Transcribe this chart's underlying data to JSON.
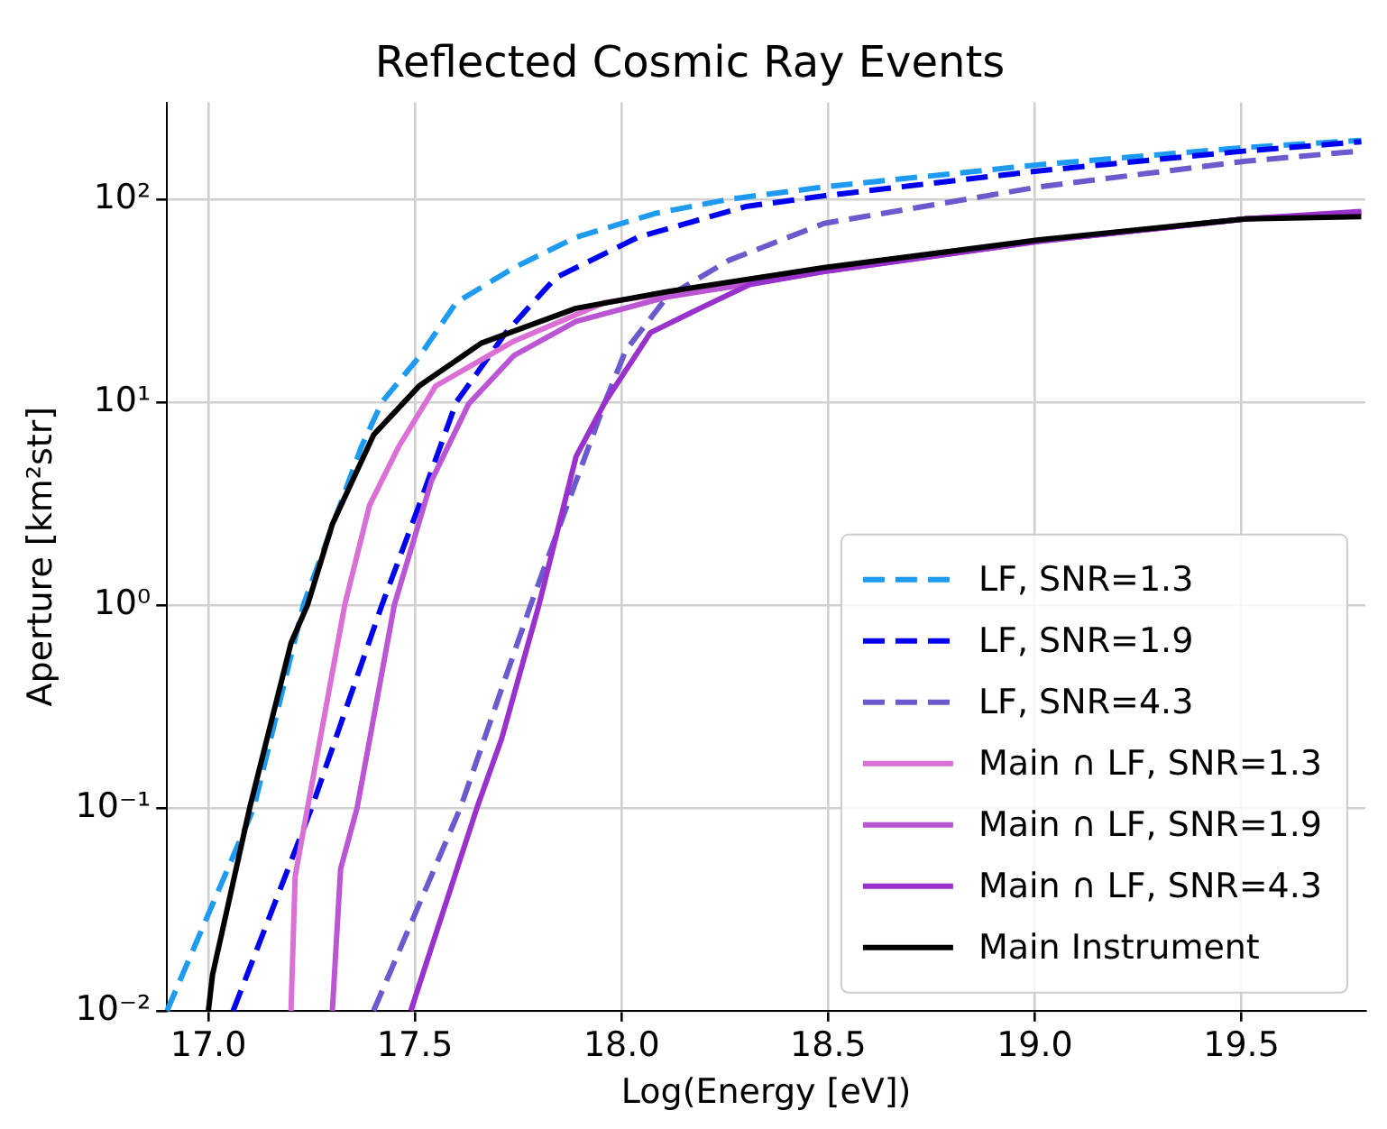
{
  "chart_data": {
    "type": "line",
    "title": "Reflected Cosmic Ray Events",
    "xlabel": "Log(Energy [eV])",
    "ylabel": "Aperture [km²str]",
    "xlim": [
      16.9,
      19.8
    ],
    "xticks": [
      {
        "value": 17,
        "label": "17.0"
      },
      {
        "value": 17.5,
        "label": "17.5"
      },
      {
        "value": 18,
        "label": "18.0"
      },
      {
        "value": 18.5,
        "label": "18.5"
      },
      {
        "value": 19,
        "label": "19.0"
      },
      {
        "value": 19.5,
        "label": "19.5"
      }
    ],
    "ylim": [
      0.01,
      300
    ],
    "yticks": [
      {
        "value": 0.01,
        "label": "10⁻²"
      },
      {
        "value": 0.1,
        "label": "10⁻¹"
      },
      {
        "value": 1,
        "label": "10⁰"
      },
      {
        "value": 10,
        "label": "10¹"
      },
      {
        "value": 100,
        "label": "10²"
      }
    ],
    "log": "y",
    "grid": true,
    "legend": "bottom right",
    "series": [
      {
        "name": "LF, SNR=1.3",
        "color": "#1e9bf0",
        "line_style": "dashed",
        "x": [
          16.9,
          17.11,
          17.23,
          17.37,
          17.42,
          17.51,
          17.6,
          17.74,
          17.89,
          18.08,
          18.26,
          18.49,
          19.01,
          19.51,
          19.79
        ],
        "values": [
          0.01,
          0.1,
          1,
          6,
          10,
          16.7,
          31,
          46,
          65,
          85,
          100,
          115,
          148,
          180,
          195
        ]
      },
      {
        "name": "LF, SNR=1.9",
        "color": "#0000f0",
        "line_style": "dashed",
        "x": [
          17.06,
          17.25,
          17.42,
          17.51,
          17.6,
          17.72,
          17.84,
          18.04,
          18.3,
          18.49,
          19.01,
          19.51,
          19.79
        ],
        "values": [
          0.01,
          0.1,
          1,
          3.1,
          10,
          22,
          41,
          65,
          92,
          104,
          138,
          173,
          192
        ]
      },
      {
        "name": "LF, SNR=4.3",
        "color": "#6a5acd",
        "line_style": "dashed",
        "x": [
          17.4,
          17.61,
          17.78,
          17.96,
          18.01,
          18.11,
          18.26,
          18.49,
          19.01,
          19.51,
          19.79
        ],
        "values": [
          0.01,
          0.1,
          1,
          10,
          18,
          33,
          50,
          76,
          115,
          154,
          173
        ]
      },
      {
        "name": "Main ∩ LF, SNR=1.3",
        "color": "#da70d6",
        "line_style": "solid",
        "x": [
          17.2,
          17.21,
          17.24,
          17.33,
          17.39,
          17.46,
          17.55,
          17.74,
          17.96,
          18.3,
          18.49,
          19.01,
          19.51,
          19.79
        ],
        "values": [
          0.01,
          0.046,
          0.1,
          1,
          3.1,
          6,
          12,
          20,
          31,
          39,
          44,
          62,
          80,
          85
        ]
      },
      {
        "name": "Main ∩ LF, SNR=1.9",
        "color": "#ba55d3",
        "line_style": "solid",
        "x": [
          17.3,
          17.32,
          17.36,
          17.45,
          17.54,
          17.63,
          17.74,
          17.89,
          18.11,
          18.3,
          18.49,
          19.01,
          19.51,
          19.79
        ],
        "values": [
          0.01,
          0.05,
          0.1,
          1,
          4.1,
          9.8,
          17,
          25,
          33,
          38,
          44,
          62,
          80,
          86
        ]
      },
      {
        "name": "Main ∩ LF, SNR=4.3",
        "color": "#9932cc",
        "line_style": "solid",
        "x": [
          17.49,
          17.65,
          17.71,
          17.8,
          17.89,
          17.96,
          18.07,
          18.19,
          18.31,
          18.49,
          19.01,
          19.51,
          19.79
        ],
        "values": [
          0.01,
          0.1,
          0.22,
          1,
          5.4,
          10,
          22,
          29,
          38,
          44,
          62,
          80,
          87
        ]
      },
      {
        "name": "Main Instrument",
        "color": "#000000",
        "line_style": "solid",
        "x": [
          17.0,
          17.01,
          17.1,
          17.2,
          17.24,
          17.3,
          17.4,
          17.51,
          17.66,
          17.89,
          18.11,
          18.49,
          19.01,
          19.51,
          19.79
        ],
        "values": [
          0.01,
          0.015,
          0.1,
          0.65,
          1,
          2.5,
          6.9,
          12,
          19.5,
          29,
          35,
          46,
          63,
          80,
          82
        ]
      }
    ]
  }
}
